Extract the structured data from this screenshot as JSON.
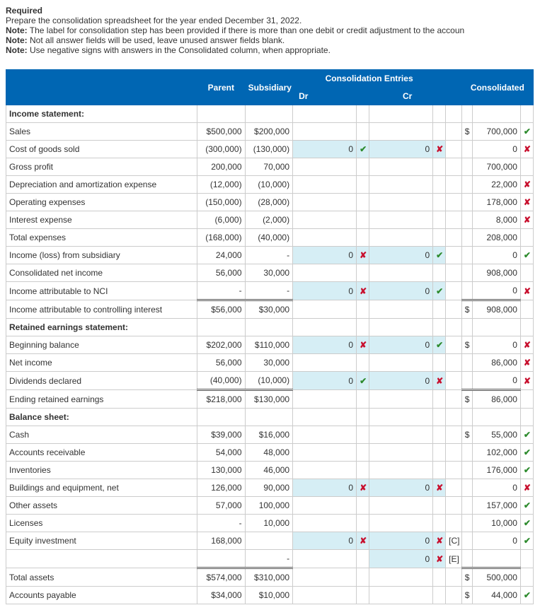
{
  "header": {
    "required": "Required",
    "line1": "Prepare the consolidation spreadsheet for the year ended December 31, 2022.",
    "notes": [
      "The label for consolidation step has been provided if there is more than one debit or credit adjustment to the accoun",
      "Not all answer fields will be used, leave unused answer fields blank.",
      "Use negative signs with answers in the Consolidated column, when appropriate."
    ],
    "note_label": "Note:"
  },
  "table": {
    "headers": {
      "parent": "Parent",
      "subsidiary": "Subsidiary",
      "consolidation_entries": "Consolidation Entries",
      "dr": "Dr",
      "cr": "Cr",
      "consolidated": "Consolidated"
    },
    "sections": {
      "income": "Income statement:",
      "retained": "Retained earnings statement:",
      "balance": "Balance sheet:"
    },
    "marks": {
      "ok": "✔",
      "bad": "✘"
    },
    "rows": [
      {
        "type": "section",
        "key": "income"
      },
      {
        "label": "Sales",
        "parent": "$500,000",
        "sub": "$200,000",
        "dr": "",
        "drM": "",
        "cr": "",
        "crM": "",
        "ds": "$",
        "cons": "700,000",
        "cM": "ok"
      },
      {
        "label": "Cost of goods sold",
        "parent": "(300,000)",
        "sub": "(130,000)",
        "dr": "0",
        "drM": "ok",
        "cr": "0",
        "crM": "bad",
        "ds": "",
        "cons": "0",
        "cM": "bad"
      },
      {
        "label": "Gross profit",
        "parent": "200,000",
        "sub": "70,000",
        "dr": "",
        "drM": "",
        "cr": "",
        "crM": "",
        "ds": "",
        "cons": "700,000",
        "cM": ""
      },
      {
        "label": "Depreciation and amortization expense",
        "parent": "(12,000)",
        "sub": "(10,000)",
        "dr": "",
        "drM": "",
        "cr": "",
        "crM": "",
        "ds": "",
        "cons": "22,000",
        "cM": "bad"
      },
      {
        "label": "Operating expenses",
        "parent": "(150,000)",
        "sub": "(28,000)",
        "dr": "",
        "drM": "",
        "cr": "",
        "crM": "",
        "ds": "",
        "cons": "178,000",
        "cM": "bad"
      },
      {
        "label": "Interest expense",
        "parent": "(6,000)",
        "sub": "(2,000)",
        "dr": "",
        "drM": "",
        "cr": "",
        "crM": "",
        "ds": "",
        "cons": "8,000",
        "cM": "bad"
      },
      {
        "label": "Total expenses",
        "parent": "(168,000)",
        "sub": "(40,000)",
        "dr": "",
        "drM": "",
        "cr": "",
        "crM": "",
        "ds": "",
        "cons": "208,000",
        "cM": ""
      },
      {
        "label": "Income (loss) from subsidiary",
        "parent": "24,000",
        "sub": "-",
        "dr": "0",
        "drM": "bad",
        "cr": "0",
        "crM": "ok",
        "ds": "",
        "cons": "0",
        "cM": "ok"
      },
      {
        "label": "Consolidated net income",
        "parent": "56,000",
        "sub": "30,000",
        "dr": "",
        "drM": "",
        "cr": "",
        "crM": "",
        "ds": "",
        "cons": "908,000",
        "cM": ""
      },
      {
        "label": "Income attributable to NCI",
        "parent": "-",
        "sub": "-",
        "dr": "0",
        "drM": "bad",
        "cr": "0",
        "crM": "ok",
        "ds": "",
        "cons": "0",
        "cM": "bad"
      },
      {
        "label": "Income attributable to controlling interest",
        "parent": "$56,000",
        "sub": "$30,000",
        "dr": "",
        "drM": "",
        "cr": "",
        "crM": "",
        "ds": "$",
        "cons": "908,000",
        "cM": "",
        "dbl": true
      },
      {
        "type": "section",
        "key": "retained"
      },
      {
        "label": "Beginning balance",
        "parent": "$202,000",
        "sub": "$110,000",
        "dr": "0",
        "drM": "bad",
        "cr": "0",
        "crM": "ok",
        "ds": "$",
        "cons": "0",
        "cM": "bad"
      },
      {
        "label": "Net income",
        "parent": "56,000",
        "sub": "30,000",
        "dr": "",
        "drM": "",
        "cr": "",
        "crM": "",
        "ds": "",
        "cons": "86,000",
        "cM": "bad"
      },
      {
        "label": "Dividends declared",
        "parent": "(40,000)",
        "sub": "(10,000)",
        "dr": "0",
        "drM": "ok",
        "cr": "0",
        "crM": "bad",
        "ds": "",
        "cons": "0",
        "cM": "bad"
      },
      {
        "label": "Ending retained earnings",
        "parent": "$218,000",
        "sub": "$130,000",
        "dr": "",
        "drM": "",
        "cr": "",
        "crM": "",
        "ds": "$",
        "cons": "86,000",
        "cM": "",
        "dbl": true
      },
      {
        "type": "section",
        "key": "balance"
      },
      {
        "label": "Cash",
        "parent": "$39,000",
        "sub": "$16,000",
        "dr": "",
        "drM": "",
        "cr": "",
        "crM": "",
        "ds": "$",
        "cons": "55,000",
        "cM": "ok"
      },
      {
        "label": "Accounts receivable",
        "parent": "54,000",
        "sub": "48,000",
        "dr": "",
        "drM": "",
        "cr": "",
        "crM": "",
        "ds": "",
        "cons": "102,000",
        "cM": "ok"
      },
      {
        "label": "Inventories",
        "parent": "130,000",
        "sub": "46,000",
        "dr": "",
        "drM": "",
        "cr": "",
        "crM": "",
        "ds": "",
        "cons": "176,000",
        "cM": "ok"
      },
      {
        "label": "Buildings and equipment, net",
        "parent": "126,000",
        "sub": "90,000",
        "dr": "0",
        "drM": "bad",
        "cr": "0",
        "crM": "bad",
        "ds": "",
        "cons": "0",
        "cM": "bad"
      },
      {
        "label": "Other assets",
        "parent": "57,000",
        "sub": "100,000",
        "dr": "",
        "drM": "",
        "cr": "",
        "crM": "",
        "ds": "",
        "cons": "157,000",
        "cM": "ok"
      },
      {
        "label": "Licenses",
        "parent": "-",
        "sub": "10,000",
        "dr": "",
        "drM": "",
        "cr": "",
        "crM": "",
        "ds": "",
        "cons": "10,000",
        "cM": "ok"
      },
      {
        "label": "Equity investment",
        "parent": "168,000",
        "sub": "",
        "dr": "0",
        "drM": "bad",
        "cr": "0",
        "crM": "bad",
        "tag": "[C]",
        "ds": "",
        "cons": "0",
        "cM": "ok"
      },
      {
        "label": "",
        "parent": "",
        "sub": "-",
        "dr": "",
        "drM": "",
        "cr": "0",
        "crM": "bad",
        "tag": "[E]",
        "ds": "",
        "cons": "",
        "cM": ""
      },
      {
        "label": "Total assets",
        "parent": "$574,000",
        "sub": "$310,000",
        "dr": "",
        "drM": "",
        "cr": "",
        "crM": "",
        "ds": "$",
        "cons": "500,000",
        "cM": "",
        "dbl": true
      },
      {
        "label": "Accounts payable",
        "parent": "$34,000",
        "sub": "$10,000",
        "dr": "",
        "drM": "",
        "cr": "",
        "crM": "",
        "ds": "$",
        "cons": "44,000",
        "cM": "ok"
      }
    ]
  }
}
